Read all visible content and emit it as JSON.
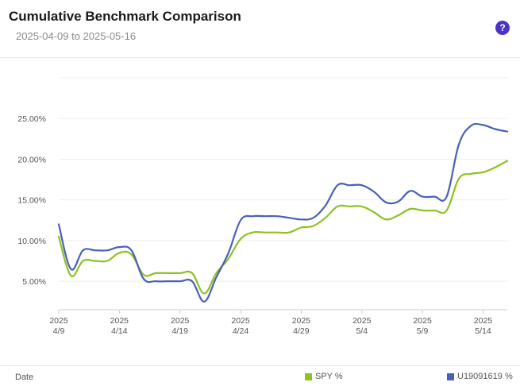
{
  "header": {
    "title": "Cumulative Benchmark Comparison",
    "date_range": "2025-04-09 to 2025-05-16",
    "help_label": "?"
  },
  "footer": {
    "x_name": "Date"
  },
  "colors": {
    "spy": "#8dc21f",
    "account": "#4a5fb8",
    "grid": "#efefef",
    "axis_text": "#555555"
  },
  "chart_data": {
    "type": "line",
    "y_tick_labels": [
      "5.00%",
      "10.00%",
      "15.00%",
      "20.00%",
      "25.00%"
    ],
    "y_ticks": [
      5,
      10,
      15,
      20,
      25
    ],
    "ylim": [
      1.5,
      30
    ],
    "xlim": [
      "2025-04-09",
      "2025-05-16"
    ],
    "x_ticks": [
      {
        "date": "2025-04-09",
        "year": "2025",
        "label": "4/9"
      },
      {
        "date": "2025-04-14",
        "year": "2025",
        "label": "4/14"
      },
      {
        "date": "2025-04-19",
        "year": "2025",
        "label": "4/19"
      },
      {
        "date": "2025-04-24",
        "year": "2025",
        "label": "4/24"
      },
      {
        "date": "2025-04-29",
        "year": "2025",
        "label": "4/29"
      },
      {
        "date": "2025-05-04",
        "year": "2025",
        "label": "5/4"
      },
      {
        "date": "2025-05-09",
        "year": "2025",
        "label": "5/9"
      },
      {
        "date": "2025-05-14",
        "year": "2025",
        "label": "5/14"
      }
    ],
    "grid": true,
    "legend_position": "bottom-right",
    "series": [
      {
        "name": "SPY %",
        "color_key": "spy",
        "points": [
          [
            "2025-04-09",
            10.5
          ],
          [
            "2025-04-10",
            5.7
          ],
          [
            "2025-04-11",
            7.5
          ],
          [
            "2025-04-12",
            7.5
          ],
          [
            "2025-04-13",
            7.5
          ],
          [
            "2025-04-14",
            8.5
          ],
          [
            "2025-04-15",
            8.3
          ],
          [
            "2025-04-16",
            5.8
          ],
          [
            "2025-04-17",
            6.0
          ],
          [
            "2025-04-18",
            6.0
          ],
          [
            "2025-04-19",
            6.0
          ],
          [
            "2025-04-20",
            6.0
          ],
          [
            "2025-04-21",
            3.5
          ],
          [
            "2025-04-22",
            6.0
          ],
          [
            "2025-04-23",
            7.8
          ],
          [
            "2025-04-24",
            10.2
          ],
          [
            "2025-04-25",
            11.0
          ],
          [
            "2025-04-26",
            11.0
          ],
          [
            "2025-04-27",
            11.0
          ],
          [
            "2025-04-28",
            11.0
          ],
          [
            "2025-04-29",
            11.6
          ],
          [
            "2025-04-30",
            11.8
          ],
          [
            "2025-05-01",
            12.8
          ],
          [
            "2025-05-02",
            14.2
          ],
          [
            "2025-05-03",
            14.2
          ],
          [
            "2025-05-04",
            14.2
          ],
          [
            "2025-05-05",
            13.5
          ],
          [
            "2025-05-06",
            12.6
          ],
          [
            "2025-05-07",
            13.1
          ],
          [
            "2025-05-08",
            13.9
          ],
          [
            "2025-05-09",
            13.7
          ],
          [
            "2025-05-10",
            13.7
          ],
          [
            "2025-05-11",
            13.7
          ],
          [
            "2025-05-12",
            17.6
          ],
          [
            "2025-05-13",
            18.2
          ],
          [
            "2025-05-14",
            18.4
          ],
          [
            "2025-05-15",
            19.0
          ],
          [
            "2025-05-16",
            19.8
          ]
        ]
      },
      {
        "name": "U19091619 %",
        "color_key": "account",
        "points": [
          [
            "2025-04-09",
            12.0
          ],
          [
            "2025-04-10",
            6.5
          ],
          [
            "2025-04-11",
            8.8
          ],
          [
            "2025-04-12",
            8.8
          ],
          [
            "2025-04-13",
            8.8
          ],
          [
            "2025-04-14",
            9.2
          ],
          [
            "2025-04-15",
            8.8
          ],
          [
            "2025-04-16",
            5.3
          ],
          [
            "2025-04-17",
            5.0
          ],
          [
            "2025-04-18",
            5.0
          ],
          [
            "2025-04-19",
            5.0
          ],
          [
            "2025-04-20",
            5.0
          ],
          [
            "2025-04-21",
            2.5
          ],
          [
            "2025-04-22",
            5.5
          ],
          [
            "2025-04-23",
            8.5
          ],
          [
            "2025-04-24",
            12.5
          ],
          [
            "2025-04-25",
            13.0
          ],
          [
            "2025-04-26",
            13.0
          ],
          [
            "2025-04-27",
            13.0
          ],
          [
            "2025-04-28",
            12.8
          ],
          [
            "2025-04-29",
            12.6
          ],
          [
            "2025-04-30",
            12.8
          ],
          [
            "2025-05-01",
            14.3
          ],
          [
            "2025-05-02",
            16.8
          ],
          [
            "2025-05-03",
            16.8
          ],
          [
            "2025-05-04",
            16.8
          ],
          [
            "2025-05-05",
            16.0
          ],
          [
            "2025-05-06",
            14.7
          ],
          [
            "2025-05-07",
            14.8
          ],
          [
            "2025-05-08",
            16.1
          ],
          [
            "2025-05-09",
            15.4
          ],
          [
            "2025-05-10",
            15.4
          ],
          [
            "2025-05-11",
            15.4
          ],
          [
            "2025-05-12",
            21.8
          ],
          [
            "2025-05-13",
            24.1
          ],
          [
            "2025-05-14",
            24.2
          ],
          [
            "2025-05-15",
            23.7
          ],
          [
            "2025-05-16",
            23.4
          ]
        ]
      }
    ]
  }
}
